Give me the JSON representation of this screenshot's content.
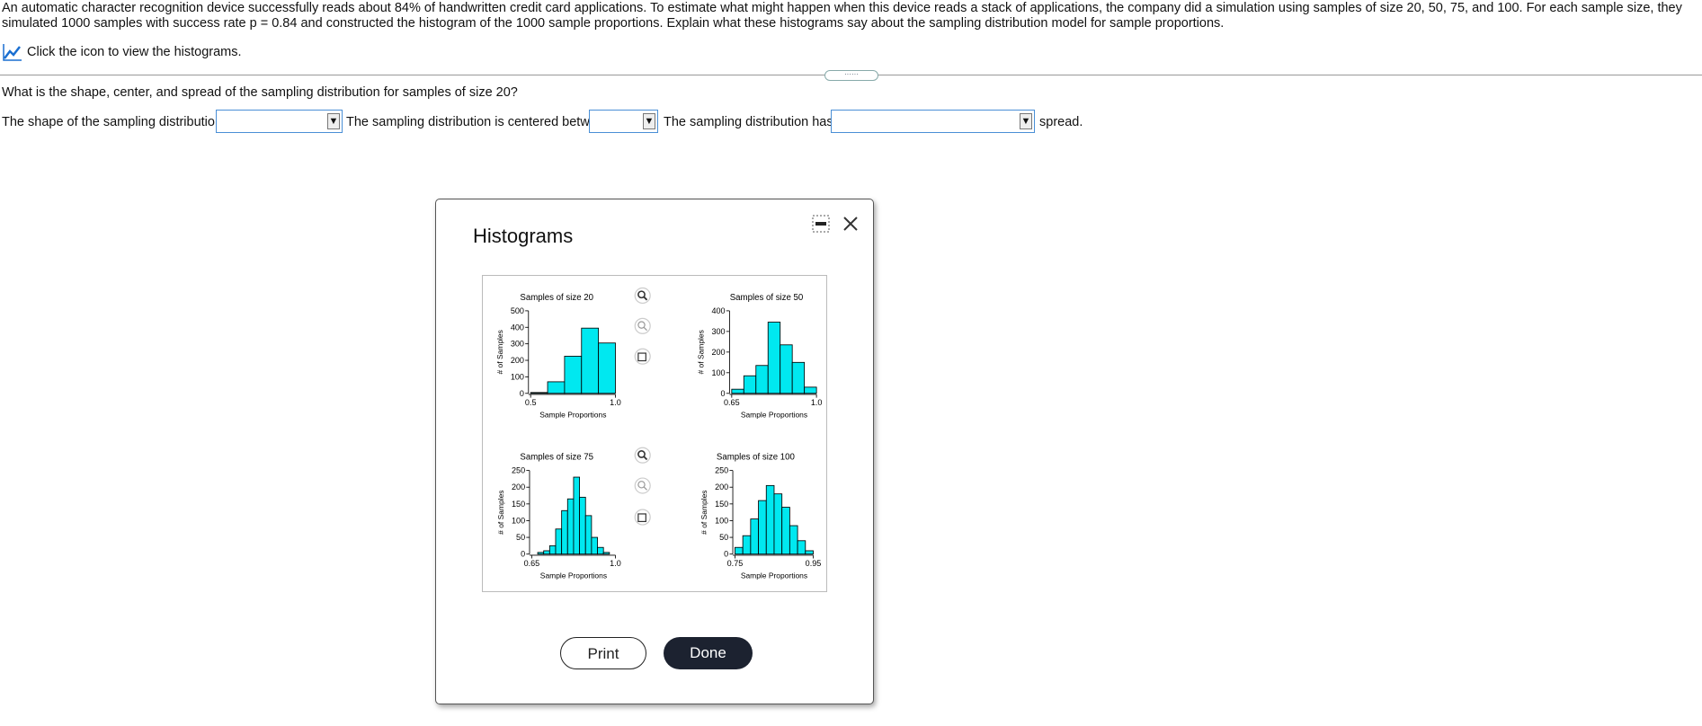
{
  "problem": {
    "text": "An automatic character recognition device successfully reads about 84% of handwritten credit card applications. To estimate what might happen when this device reads a stack of applications, the company did a simulation using samples of size 20, 50, 75, and 100. For each sample size, they simulated 1000 samples with success rate p = 0.84 and constructed the histogram of the 1000 sample proportions. Explain what these histograms say about the sampling distribution model for sample proportions.",
    "link": "Click the icon to view the histograms."
  },
  "question": {
    "text": "What is the shape, center, and spread of the sampling distribution for samples of size 20?",
    "shape_label": "The shape of the sampling distribution is",
    "center_label": "The sampling distribution is centered between",
    "spread_label": "The sampling distribution has a",
    "spread_suffix": "spread."
  },
  "dialog": {
    "title": "Histograms",
    "print": "Print",
    "done": "Done"
  },
  "chart_data": [
    {
      "type": "histogram",
      "title": "Samples of size 20",
      "xlabel": "Sample Proportions",
      "ylabel": "# of Samples",
      "color": "#00e8f0",
      "bins": [
        0.5,
        0.6,
        0.7,
        0.8,
        0.9,
        1.0
      ],
      "counts": [
        5,
        70,
        225,
        395,
        305
      ],
      "xlim": [
        0.5,
        1.0
      ],
      "xticks": [
        0.5,
        {
          "value": 1.0,
          "label": "1.0"
        }
      ],
      "ylim": [
        0,
        500
      ],
      "yticks": [
        0,
        100,
        200,
        300,
        400,
        500
      ]
    },
    {
      "type": "histogram",
      "title": "Samples of size 50",
      "xlabel": "Sample Proportions",
      "ylabel": "# of Samples",
      "color": "#00e8f0",
      "bins": [
        0.65,
        0.7,
        0.75,
        0.8,
        0.85,
        0.9,
        0.95,
        1.0
      ],
      "counts": [
        20,
        85,
        135,
        345,
        235,
        150,
        30
      ],
      "xlim": [
        0.65,
        1.0
      ],
      "xticks": [
        0.65,
        {
          "value": 1.0,
          "label": "1.0"
        }
      ],
      "ylim": [
        0,
        400
      ],
      "yticks": [
        0,
        100,
        200,
        300,
        400
      ]
    },
    {
      "type": "histogram",
      "title": "Samples of size 75",
      "xlabel": "Sample Proportions",
      "ylabel": "# of Samples",
      "color": "#00e8f0",
      "bins": [
        0.675,
        0.7,
        0.725,
        0.75,
        0.775,
        0.8,
        0.825,
        0.85,
        0.875,
        0.9,
        0.925,
        0.95,
        0.975
      ],
      "counts": [
        5,
        10,
        25,
        75,
        130,
        165,
        230,
        170,
        115,
        50,
        20,
        5
      ],
      "xlim": [
        0.65,
        1.0
      ],
      "xticks": [
        0.65,
        {
          "value": 1.0,
          "label": "1.0"
        }
      ],
      "ylim": [
        0,
        250
      ],
      "yticks": [
        0,
        50,
        100,
        150,
        200,
        250
      ]
    },
    {
      "type": "histogram",
      "title": "Samples of size 100",
      "xlabel": "Sample Proportions",
      "ylabel": "# of Samples",
      "color": "#00e8f0",
      "bins": [
        0.75,
        0.77,
        0.79,
        0.81,
        0.83,
        0.85,
        0.87,
        0.89,
        0.91,
        0.93,
        0.95
      ],
      "counts": [
        20,
        55,
        105,
        160,
        205,
        180,
        140,
        85,
        40,
        10
      ],
      "xlim": [
        0.75,
        0.95
      ],
      "xticks": [
        0.75,
        0.95
      ],
      "ylim": [
        0,
        250
      ],
      "yticks": [
        0,
        50,
        100,
        150,
        200,
        250
      ]
    }
  ]
}
